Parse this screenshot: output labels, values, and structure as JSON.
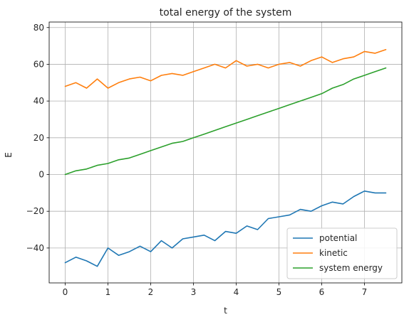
{
  "chart_data": {
    "type": "line",
    "title": "total energy of the system",
    "xlabel": "t",
    "ylabel": "E",
    "xlim": [
      -0.375,
      7.875
    ],
    "ylim": [
      -59,
      83
    ],
    "xticks": [
      0,
      1,
      2,
      3,
      4,
      5,
      6,
      7
    ],
    "yticks": [
      -40,
      -20,
      0,
      20,
      40,
      60,
      80
    ],
    "grid": true,
    "legend_position": "lower-right",
    "x": [
      0,
      0.25,
      0.5,
      0.75,
      1,
      1.25,
      1.5,
      1.75,
      2,
      2.25,
      2.5,
      2.75,
      3,
      3.25,
      3.5,
      3.75,
      4,
      4.25,
      4.5,
      4.75,
      5,
      5.25,
      5.5,
      5.75,
      6,
      6.25,
      6.5,
      6.75,
      7,
      7.25,
      7.5
    ],
    "series": [
      {
        "name": "potential",
        "color": "#1f77b4",
        "values": [
          -48,
          -45,
          -47,
          -50,
          -40,
          -44,
          -42,
          -39,
          -42,
          -36,
          -40,
          -35,
          -34,
          -33,
          -36,
          -31,
          -32,
          -28,
          -30,
          -24,
          -23,
          -22,
          -19,
          -20,
          -17,
          -15,
          -16,
          -12,
          -9,
          -10,
          -10
        ]
      },
      {
        "name": "kinetic",
        "color": "#ff7f0e",
        "values": [
          48,
          50,
          47,
          52,
          47,
          50,
          52,
          53,
          51,
          54,
          55,
          54,
          56,
          58,
          60,
          58,
          62,
          59,
          60,
          58,
          60,
          61,
          59,
          62,
          64,
          61,
          63,
          64,
          67,
          66,
          68
        ]
      },
      {
        "name": "system energy",
        "color": "#2ca02c",
        "values": [
          0,
          2,
          3,
          5,
          6,
          8,
          9,
          11,
          13,
          15,
          17,
          18,
          20,
          22,
          24,
          26,
          28,
          30,
          32,
          34,
          36,
          38,
          40,
          42,
          44,
          47,
          49,
          52,
          54,
          56,
          58
        ]
      }
    ]
  }
}
